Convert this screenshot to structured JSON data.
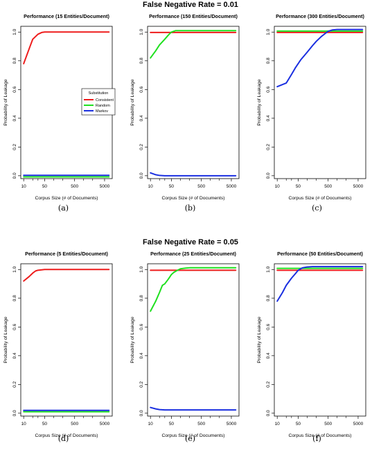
{
  "rows": [
    {
      "title": "False Negative Rate = 0.01"
    },
    {
      "title": "False Negative Rate = 0.05"
    }
  ],
  "colors": {
    "Consistent": "#ee1c1c",
    "Random": "#1fe01f",
    "Markov": "#1a2fe0"
  },
  "chart_data": [
    {
      "panel_label": "(a)",
      "type": "line",
      "title": "Performance (15 Entities/Document)",
      "xlabel": "Corpus Size (# of Documents)",
      "ylabel": "Probability of Leakage",
      "x_scale": "log",
      "xlim": [
        8,
        9000
      ],
      "ylim": [
        -0.02,
        1.04
      ],
      "x_ticks": [
        10,
        50,
        500,
        5000
      ],
      "y_ticks": [
        0.0,
        0.2,
        0.4,
        0.6,
        0.8,
        1.0
      ],
      "legend": {
        "title": "Substitution",
        "position": "center-right"
      },
      "series": [
        {
          "name": "Consistent",
          "x": [
            10,
            15,
            20,
            30,
            40,
            50,
            70,
            100,
            500,
            7000
          ],
          "y": [
            0.78,
            0.88,
            0.95,
            0.985,
            0.997,
            1.0,
            1.0,
            1.0,
            1.0,
            1.0
          ]
        },
        {
          "name": "Random",
          "x": [
            10,
            7000
          ],
          "y": [
            -0.008,
            -0.008
          ]
        },
        {
          "name": "Markov",
          "x": [
            10,
            7000
          ],
          "y": [
            0.003,
            0.003
          ]
        }
      ]
    },
    {
      "panel_label": "(b)",
      "type": "line",
      "title": "Performance (150 Entities/Document)",
      "xlabel": "Corpus Size (# of Documents)",
      "ylabel": "Probability of Leakage",
      "x_scale": "log",
      "xlim": [
        8,
        9000
      ],
      "ylim": [
        -0.02,
        1.04
      ],
      "x_ticks": [
        10,
        50,
        500,
        5000
      ],
      "y_ticks": [
        0.0,
        0.2,
        0.4,
        0.6,
        0.8,
        1.0
      ],
      "series": [
        {
          "name": "Consistent",
          "x": [
            10,
            7000
          ],
          "y": [
            0.997,
            0.997
          ]
        },
        {
          "name": "Random",
          "x": [
            10,
            15,
            20,
            30,
            40,
            50,
            70,
            100,
            500,
            7000
          ],
          "y": [
            0.82,
            0.87,
            0.91,
            0.95,
            0.98,
            1.0,
            1.01,
            1.01,
            1.01,
            1.01
          ]
        },
        {
          "name": "Markov",
          "x": [
            10,
            15,
            20,
            30,
            50,
            7000
          ],
          "y": [
            0.02,
            0.007,
            0.002,
            0.0,
            0.0,
            0.0
          ]
        }
      ]
    },
    {
      "panel_label": "(c)",
      "type": "line",
      "title": "Performance (300 Entities/Document)",
      "xlabel": "Corpus Size (# of Documents)",
      "ylabel": "Probability of Leakage",
      "x_scale": "log",
      "xlim": [
        8,
        9000
      ],
      "ylim": [
        -0.02,
        1.04
      ],
      "x_ticks": [
        10,
        50,
        500,
        5000
      ],
      "y_ticks": [
        0.0,
        0.2,
        0.4,
        0.6,
        0.8,
        1.0
      ],
      "series": [
        {
          "name": "Consistent",
          "x": [
            10,
            7000
          ],
          "y": [
            0.997,
            0.997
          ]
        },
        {
          "name": "Random",
          "x": [
            10,
            7000
          ],
          "y": [
            1.007,
            1.007
          ]
        },
        {
          "name": "Markov",
          "x": [
            10,
            20,
            30,
            40,
            60,
            100,
            150,
            200,
            300,
            400,
            500,
            700,
            1000,
            7000
          ],
          "y": [
            0.62,
            0.645,
            0.705,
            0.75,
            0.805,
            0.86,
            0.905,
            0.935,
            0.97,
            0.99,
            1.005,
            1.015,
            1.018,
            1.018
          ]
        }
      ]
    },
    {
      "panel_label": "(d)",
      "type": "line",
      "title": "Performance (5 Entities/Document)",
      "xlabel": "Corpus Size (# of Documents)",
      "ylabel": "Probability of Leakage",
      "x_scale": "log",
      "xlim": [
        8,
        9000
      ],
      "ylim": [
        -0.02,
        1.04
      ],
      "x_ticks": [
        10,
        50,
        500,
        5000
      ],
      "y_ticks": [
        0.0,
        0.2,
        0.4,
        0.6,
        0.8,
        1.0
      ],
      "series": [
        {
          "name": "Consistent",
          "x": [
            10,
            15,
            20,
            25,
            30,
            40,
            50,
            100,
            500,
            7000
          ],
          "y": [
            0.92,
            0.95,
            0.975,
            0.99,
            0.995,
            0.998,
            1.0,
            1.0,
            1.0,
            1.0
          ]
        },
        {
          "name": "Random",
          "x": [
            10,
            7000
          ],
          "y": [
            0.01,
            0.01
          ]
        },
        {
          "name": "Markov",
          "x": [
            10,
            7000
          ],
          "y": [
            0.02,
            0.02
          ]
        }
      ]
    },
    {
      "panel_label": "(e)",
      "type": "line",
      "title": "Performance (25 Entities/Document)",
      "xlabel": "Corpus Size (# of Documents)",
      "ylabel": "Probability of Leakage",
      "x_scale": "log",
      "xlim": [
        8,
        9000
      ],
      "ylim": [
        -0.02,
        1.04
      ],
      "x_ticks": [
        10,
        50,
        500,
        5000
      ],
      "y_ticks": [
        0.0,
        0.2,
        0.4,
        0.6,
        0.8,
        1.0
      ],
      "series": [
        {
          "name": "Consistent",
          "x": [
            10,
            7000
          ],
          "y": [
            0.995,
            0.995
          ]
        },
        {
          "name": "Random",
          "x": [
            10,
            15,
            20,
            25,
            30,
            40,
            50,
            60,
            80,
            100,
            150,
            200,
            7000
          ],
          "y": [
            0.71,
            0.78,
            0.84,
            0.89,
            0.9,
            0.935,
            0.965,
            0.98,
            0.995,
            1.005,
            1.01,
            1.012,
            1.012
          ]
        },
        {
          "name": "Markov",
          "x": [
            10,
            15,
            20,
            30,
            7000
          ],
          "y": [
            0.04,
            0.03,
            0.025,
            0.023,
            0.023
          ]
        }
      ]
    },
    {
      "panel_label": "(f)",
      "type": "line",
      "title": "Performance (50 Entities/Document)",
      "xlabel": "Corpus Size (# of Documents)",
      "ylabel": "Probability of Leakage",
      "x_scale": "log",
      "xlim": [
        8,
        9000
      ],
      "ylim": [
        -0.02,
        1.04
      ],
      "x_ticks": [
        10,
        50,
        500,
        5000
      ],
      "y_ticks": [
        0.0,
        0.2,
        0.4,
        0.6,
        0.8,
        1.0
      ],
      "series": [
        {
          "name": "Consistent",
          "x": [
            10,
            7000
          ],
          "y": [
            0.995,
            0.995
          ]
        },
        {
          "name": "Random",
          "x": [
            10,
            7000
          ],
          "y": [
            1.008,
            1.008
          ]
        },
        {
          "name": "Markov",
          "x": [
            10,
            15,
            20,
            30,
            40,
            50,
            70,
            100,
            150,
            7000
          ],
          "y": [
            0.78,
            0.84,
            0.89,
            0.94,
            0.97,
            0.995,
            1.012,
            1.018,
            1.02,
            1.02
          ]
        }
      ]
    }
  ]
}
